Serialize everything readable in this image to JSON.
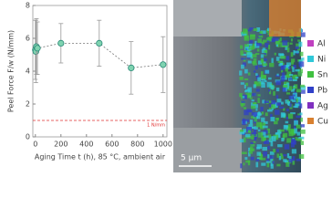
{
  "chart_data": {
    "type": "scatter",
    "y_label": "Peel Force F/w (N/mm)",
    "x_label": "Aging Time t (h), 85 °C, ambient air",
    "x": [
      0,
      4,
      8,
      16,
      200,
      500,
      750,
      1000
    ],
    "values": [
      5.3,
      5.2,
      5.5,
      5.4,
      5.7,
      5.7,
      4.2,
      4.4
    ],
    "errors": [
      1.8,
      1.9,
      1.7,
      1.6,
      1.2,
      1.4,
      1.6,
      1.7
    ],
    "color": "#7fd3b0",
    "edge_color": "#2a8a78",
    "line_color": "#777",
    "xlim": [
      -20,
      1030
    ],
    "xticks": [
      0,
      200,
      400,
      600,
      800,
      1000
    ],
    "ylim": [
      0,
      8
    ],
    "yticks": [
      0,
      2,
      4,
      6,
      8
    ],
    "threshold": {
      "value": 1,
      "label": "1 N/mm",
      "color": "#e03030"
    }
  },
  "image": {
    "scale_bar": "5 μm",
    "legend": [
      {
        "name": "Al",
        "color": "#c040c0"
      },
      {
        "name": "Ni",
        "color": "#30c8d8"
      },
      {
        "name": "Sn",
        "color": "#40c040"
      },
      {
        "name": "Pb",
        "color": "#3040c8"
      },
      {
        "name": "Ag",
        "color": "#8030c0"
      },
      {
        "name": "Cu",
        "color": "#d88030"
      }
    ]
  }
}
